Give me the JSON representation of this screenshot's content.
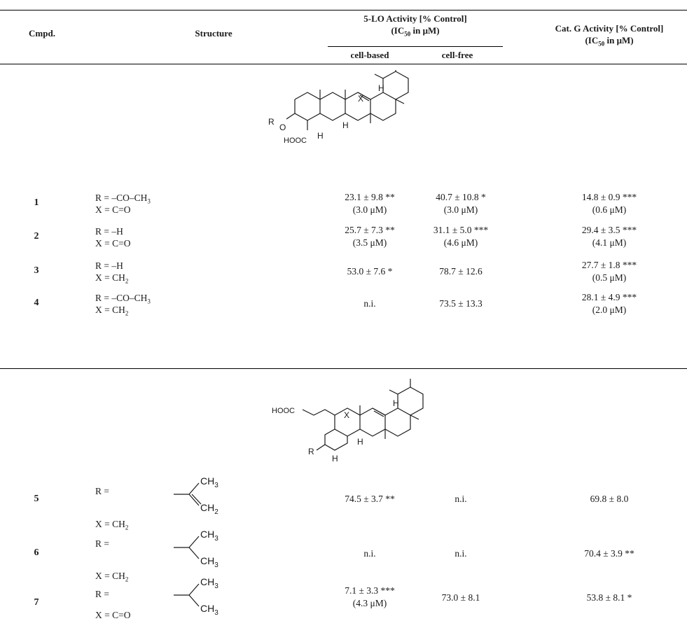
{
  "header": {
    "cmpd": "Cmpd.",
    "structure": "Structure",
    "lo_group_line1": "5-LO Activity [% Control]",
    "lo_group_line2": "(IC50 in μM)",
    "lo_cell_based": "cell-based",
    "lo_cell_free": "cell-free",
    "catg_line1": "Cat. G Activity [% Control]",
    "catg_line2": "(IC50 in μM)"
  },
  "structure1": {
    "atom_h1": "H",
    "atom_x": "X",
    "atom_h2": "H",
    "atom_h3": "H",
    "atom_r": "R",
    "atom_o": "O",
    "atom_hooc": "HOOC"
  },
  "structure2": {
    "atom_h1": "H",
    "atom_x": "X",
    "atom_hooc": "HOOC",
    "atom_h2": "H",
    "atom_r": "R",
    "atom_h3": "H"
  },
  "rows_group1": [
    {
      "id": "1",
      "r": "R = –CO–CH3",
      "x": "X = C=O",
      "lo_cell": "23.1 ± 9.8 **",
      "lo_cell_ic": "(3.0 μM)",
      "lo_free": "40.7 ± 10.8 *",
      "lo_free_ic": "(3.0 μM)",
      "catg": "14.8 ± 0.9 ***",
      "catg_ic": "(0.6 μM)"
    },
    {
      "id": "2",
      "r": "R = –H",
      "x": "X = C=O",
      "lo_cell": "25.7 ± 7.3 **",
      "lo_cell_ic": "(3.5 μM)",
      "lo_free": "31.1 ± 5.0 ***",
      "lo_free_ic": "(4.6 μM)",
      "catg": "29.4 ± 3.5 ***",
      "catg_ic": "(4.1 μM)"
    },
    {
      "id": "3",
      "r": "R = –H",
      "x": "X = CH2",
      "lo_cell": "53.0 ± 7.6 *",
      "lo_cell_ic": "",
      "lo_free": "78.7 ± 12.6",
      "lo_free_ic": "",
      "catg": "27.7 ± 1.8 ***",
      "catg_ic": "(0.5 μM)"
    },
    {
      "id": "4",
      "r": "R = –CO–CH3",
      "x": "X = CH2",
      "lo_cell": "n.i.",
      "lo_cell_ic": "",
      "lo_free": "73.5 ± 13.3",
      "lo_free_ic": "",
      "catg": "28.1 ± 4.9 ***",
      "catg_ic": "(2.0 μM)"
    }
  ],
  "rows_group2": [
    {
      "id": "5",
      "r": "R =",
      "x": "X = CH2",
      "frag_top": "CH3",
      "frag_bottom": "CH2",
      "lo_cell": "74.5 ± 3.7 **",
      "lo_cell_ic": "",
      "lo_free": "n.i.",
      "lo_free_ic": "",
      "catg": "69.8 ± 8.0",
      "catg_ic": ""
    },
    {
      "id": "6",
      "r": "R =",
      "x": "X = CH2",
      "frag_top": "CH3",
      "frag_bottom": "CH3",
      "lo_cell": "n.i.",
      "lo_cell_ic": "",
      "lo_free": "n.i.",
      "lo_free_ic": "",
      "catg": "70.4 ± 3.9 **",
      "catg_ic": ""
    },
    {
      "id": "7",
      "r": "R =",
      "x": "X = C=O",
      "frag_top": "CH3",
      "frag_bottom": "CH3",
      "lo_cell": "7.1 ± 3.3 ***",
      "lo_cell_ic": "(4.3 μM)",
      "lo_free": "73.0 ± 8.1",
      "lo_free_ic": "",
      "catg": "53.8 ± 8.1 *",
      "catg_ic": ""
    }
  ]
}
